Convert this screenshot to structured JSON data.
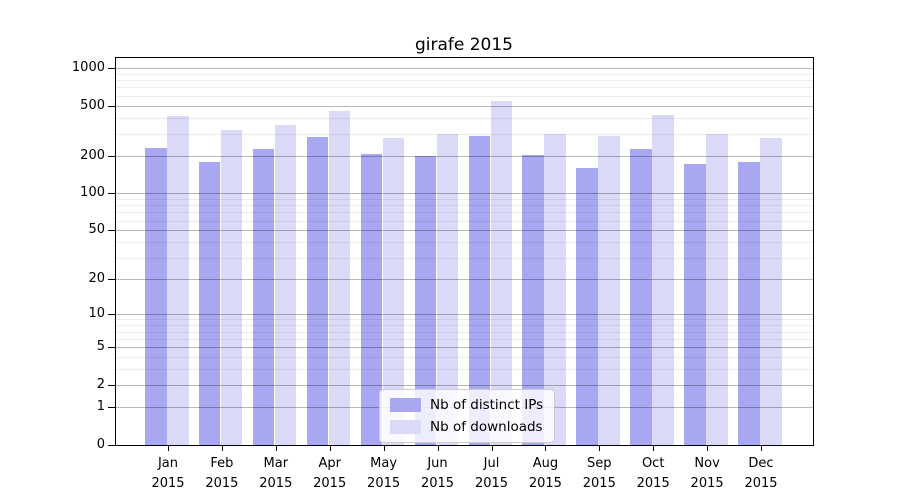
{
  "chart_data": {
    "type": "bar",
    "title": "girafe 2015",
    "categories": [
      "Jan",
      "Feb",
      "Mar",
      "Apr",
      "May",
      "Jun",
      "Jul",
      "Aug",
      "Sep",
      "Oct",
      "Nov",
      "Dec"
    ],
    "category_line2": "2015",
    "series": [
      {
        "name": "Nb of distinct IPs",
        "color": "#a7a7f2",
        "values": [
          231,
          178,
          227,
          280,
          206,
          197,
          286,
          204,
          160,
          227,
          170,
          178
        ]
      },
      {
        "name": "Nb of downloads",
        "color": "#dadaf8",
        "values": [
          413,
          323,
          350,
          452,
          277,
          300,
          543,
          298,
          286,
          420,
          295,
          277
        ]
      }
    ],
    "xlabel": "",
    "ylabel": "",
    "yscale": "log1p",
    "ylim": [
      0,
      1200
    ],
    "major_ticks": [
      0,
      1,
      2,
      5,
      10,
      20,
      50,
      100,
      200,
      500,
      1000
    ],
    "minor_ticks": [
      3,
      4,
      6,
      7,
      8,
      9,
      30,
      40,
      60,
      70,
      80,
      90,
      300,
      400,
      600,
      700,
      800,
      900
    ],
    "grid": true,
    "legend_position": "lower-center",
    "grid_major_color": "#b5b5b5",
    "grid_minor_color": "#ececec"
  }
}
